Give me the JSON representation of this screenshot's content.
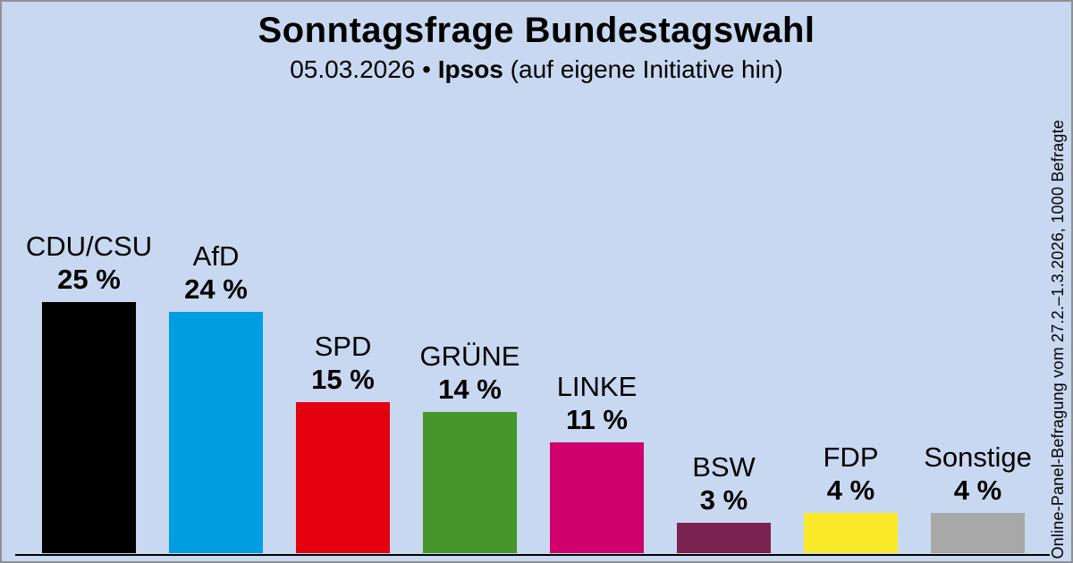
{
  "header": {
    "title": "Sonntagsfrage Bundestagswahl",
    "subtitle_date": "05.03.2026",
    "subtitle_separator": "•",
    "subtitle_source": "Ipsos",
    "subtitle_note": "(auf eigene Initiative hin)"
  },
  "side_note": "Online-Panel-Befragung vom 27.2.–1.3.2026, 1000 Befragte",
  "chart_data": {
    "type": "bar",
    "title": "Sonntagsfrage Bundestagswahl",
    "subtitle": "05.03.2026 • Ipsos (auf eigene Initiative hin)",
    "categories": [
      "CDU/CSU",
      "AfD",
      "SPD",
      "GRÜNE",
      "LINKE",
      "BSW",
      "FDP",
      "Sonstige"
    ],
    "values": [
      25,
      24,
      15,
      14,
      11,
      3,
      4,
      4
    ],
    "value_labels": [
      "25 %",
      "24 %",
      "15 %",
      "14 %",
      "11 %",
      "3 %",
      "4 %",
      "4 %"
    ],
    "bar_colors": [
      "#000000",
      "#009ee0",
      "#e3000f",
      "#46962b",
      "#d0006e",
      "#7a2350",
      "#fae929",
      "#a8a8a8"
    ],
    "xlabel": "",
    "ylabel": "",
    "ylim": [
      0,
      27
    ],
    "grid": false,
    "legend": "none",
    "value_label_position": "above-bar",
    "baseline_axis": true
  },
  "colors": {
    "background": "#c8d8f0",
    "border": "#8d9096",
    "axis_line": "#000000",
    "text": "#000000"
  }
}
